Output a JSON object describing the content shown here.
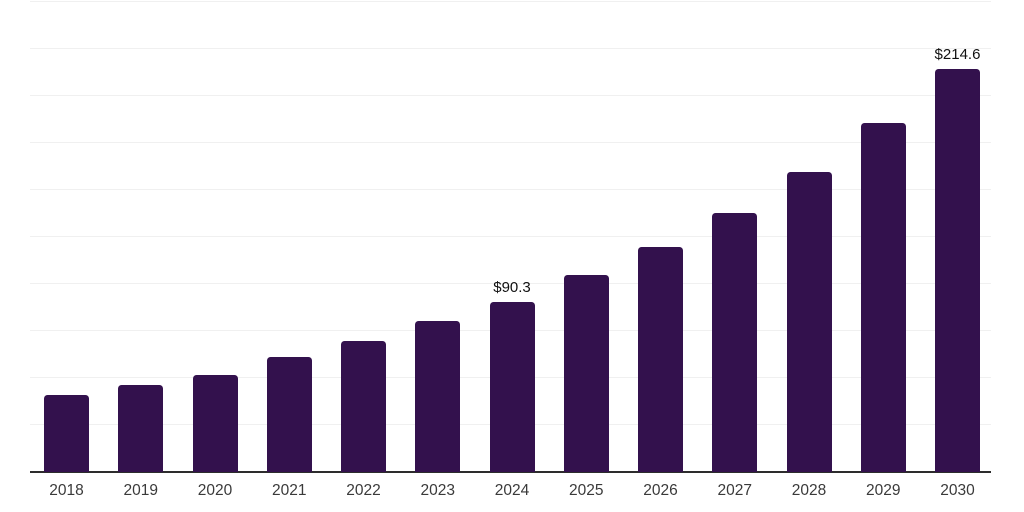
{
  "chart_data": {
    "type": "bar",
    "title": "",
    "xlabel": "",
    "ylabel": "",
    "categories": [
      "2018",
      "2019",
      "2020",
      "2021",
      "2022",
      "2023",
      "2024",
      "2025",
      "2026",
      "2027",
      "2028",
      "2029",
      "2030"
    ],
    "values": [
      41.0,
      46.3,
      51.6,
      61.2,
      69.7,
      80.3,
      90.3,
      104.8,
      119.7,
      137.8,
      159.6,
      185.6,
      214.6
    ],
    "point_labels": [
      "",
      "",
      "",
      "",
      "",
      "",
      "$90.3",
      "",
      "",
      "",
      "",
      "",
      "$214.6"
    ],
    "ylim": [
      0,
      250
    ],
    "ytick_step": 25,
    "grid": true,
    "legend": false,
    "colors": {
      "bar": "#33114D",
      "gridline": "#f0f0f0",
      "axis_line": "#2d2d2d",
      "x_tick_label": "#3a3a3a",
      "point_label": "#111111",
      "background": "#ffffff"
    }
  }
}
